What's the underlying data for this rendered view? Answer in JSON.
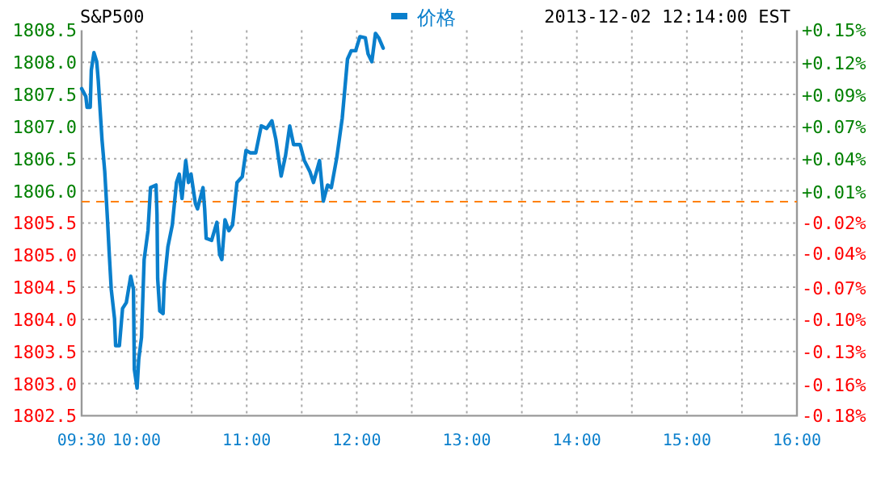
{
  "chart_data": {
    "type": "line",
    "title": "S&P500",
    "subtitle": "2013-12-02 12:14:00 EST",
    "xlim": [
      9.5,
      16
    ],
    "ylim": [
      1802.5,
      1808.5
    ],
    "y2lim": [
      -0.184,
      0.148
    ],
    "xticks": [
      {
        "value": 9.5,
        "label": "09:30"
      },
      {
        "value": 10,
        "label": "10:00"
      },
      {
        "value": 10.5,
        "label": null
      },
      {
        "value": 11,
        "label": "11:00"
      },
      {
        "value": 11.5,
        "label": null
      },
      {
        "value": 12,
        "label": "12:00"
      },
      {
        "value": 12.5,
        "label": null
      },
      {
        "value": 13,
        "label": "13:00"
      },
      {
        "value": 13.5,
        "label": null
      },
      {
        "value": 14,
        "label": "14:00"
      },
      {
        "value": 14.5,
        "label": null
      },
      {
        "value": 15,
        "label": "15:00"
      },
      {
        "value": 15.5,
        "label": null
      },
      {
        "value": 16,
        "label": "16:00"
      }
    ],
    "yticks": [
      {
        "value": 1802.5,
        "label": "1802.5"
      },
      {
        "value": 1803,
        "label": "1803.0"
      },
      {
        "value": 1803.5,
        "label": "1803.5"
      },
      {
        "value": 1804,
        "label": "1804.0"
      },
      {
        "value": 1804.5,
        "label": "1804.5"
      },
      {
        "value": 1805,
        "label": "1805.0"
      },
      {
        "value": 1805.5,
        "label": "1805.5"
      },
      {
        "value": 1806,
        "label": "1806.0"
      },
      {
        "value": 1806.5,
        "label": "1806.5"
      },
      {
        "value": 1807,
        "label": "1807.0"
      },
      {
        "value": 1807.5,
        "label": "1807.5"
      },
      {
        "value": 1808,
        "label": "1808.0"
      },
      {
        "value": 1808.5,
        "label": "1808.5"
      }
    ],
    "y2ticks": [
      {
        "value": -0.184,
        "label": "-0.18%"
      },
      {
        "value": -0.157,
        "label": "-0.16%"
      },
      {
        "value": -0.129,
        "label": "-0.13%"
      },
      {
        "value": -0.101,
        "label": "-0.10%"
      },
      {
        "value": -0.074,
        "label": "-0.07%"
      },
      {
        "value": -0.044,
        "label": "-0.04%"
      },
      {
        "value": -0.018,
        "label": "-0.02%"
      },
      {
        "value": 0.009,
        "label": "+0.01%"
      },
      {
        "value": 0.037,
        "label": "+0.04%"
      },
      {
        "value": 0.065,
        "label": "+0.07%"
      },
      {
        "value": 0.092,
        "label": "+0.09%"
      },
      {
        "value": 0.12,
        "label": "+0.12%"
      },
      {
        "value": 0.148,
        "label": "+0.15%"
      }
    ],
    "grid": true,
    "legend": "top",
    "ref_lines": [
      {
        "axis": "y",
        "value": 1805.83,
        "color": "#ff8000",
        "line_style": "dashed"
      }
    ],
    "series": [
      {
        "name": "价格",
        "color": "#0a7fcc",
        "x": [
          9.5,
          9.538,
          9.549,
          9.578,
          9.588,
          9.612,
          9.637,
          9.651,
          9.685,
          9.71,
          9.735,
          9.75,
          9.769,
          9.799,
          9.809,
          9.843,
          9.872,
          9.906,
          9.946,
          9.971,
          9.979,
          10.004,
          10.019,
          10.044,
          10.068,
          10.103,
          10.126,
          10.176,
          10.185,
          10.191,
          10.21,
          10.24,
          10.25,
          10.284,
          10.324,
          10.362,
          10.387,
          10.412,
          10.446,
          10.471,
          10.494,
          10.534,
          10.553,
          10.603,
          10.618,
          10.632,
          10.681,
          10.729,
          10.754,
          10.774,
          10.803,
          10.838,
          10.872,
          10.912,
          10.96,
          10.994,
          11.034,
          11.082,
          11.132,
          11.181,
          11.229,
          11.265,
          11.313,
          11.353,
          11.391,
          11.426,
          11.485,
          11.524,
          11.574,
          11.607,
          11.662,
          11.696,
          11.735,
          11.769,
          11.818,
          11.868,
          11.916,
          11.95,
          11.99,
          12.029,
          12.078,
          12.103,
          12.137,
          12.17,
          12.2,
          12.24
        ],
        "values": [
          1807.59,
          1807.47,
          1807.3,
          1807.3,
          1807.88,
          1808.15,
          1808.01,
          1807.72,
          1806.8,
          1806.3,
          1805.55,
          1805.05,
          1804.47,
          1804.01,
          1803.59,
          1803.59,
          1804.17,
          1804.26,
          1804.67,
          1804.47,
          1803.22,
          1802.93,
          1803.38,
          1803.72,
          1804.93,
          1805.38,
          1806.05,
          1806.09,
          1805.63,
          1804.63,
          1804.13,
          1804.09,
          1804.55,
          1805.13,
          1805.47,
          1806.13,
          1806.26,
          1805.88,
          1806.47,
          1806.13,
          1806.26,
          1805.8,
          1805.72,
          1806.05,
          1805.72,
          1805.26,
          1805.23,
          1805.51,
          1805.01,
          1804.93,
          1805.55,
          1805.38,
          1805.47,
          1806.13,
          1806.22,
          1806.63,
          1806.59,
          1806.59,
          1807.01,
          1806.97,
          1807.09,
          1806.8,
          1806.23,
          1806.55,
          1807.01,
          1806.72,
          1806.72,
          1806.47,
          1806.3,
          1806.13,
          1806.47,
          1805.84,
          1806.09,
          1806.05,
          1806.51,
          1807.13,
          1808.05,
          1808.18,
          1808.18,
          1808.4,
          1808.38,
          1808.13,
          1808.01,
          1808.45,
          1808.38,
          1808.22
        ]
      }
    ]
  }
}
